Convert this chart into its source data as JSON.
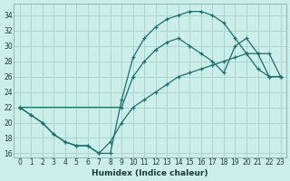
{
  "xlabel": "Humidex (Indice chaleur)",
  "ylabel": "",
  "bg_color": "#cceee8",
  "grid_color": "#aad4ce",
  "line_color": "#1a6e6e",
  "xlim": [
    -0.5,
    23.5
  ],
  "ylim": [
    15.5,
    35.5
  ],
  "xticks": [
    0,
    1,
    2,
    3,
    4,
    5,
    6,
    7,
    8,
    9,
    10,
    11,
    12,
    13,
    14,
    15,
    16,
    17,
    18,
    19,
    20,
    21,
    22,
    23
  ],
  "yticks": [
    16,
    18,
    20,
    22,
    24,
    26,
    28,
    30,
    32,
    34
  ],
  "curve1_x": [
    0,
    1,
    2,
    3,
    4,
    5,
    6,
    7,
    8,
    9,
    10,
    11,
    12,
    13,
    14,
    15,
    16,
    17,
    18,
    19,
    20,
    21,
    22,
    23
  ],
  "curve1_y": [
    22,
    21,
    20,
    18.5,
    17.5,
    17,
    17,
    16,
    16,
    23,
    28.5,
    31,
    32.5,
    33.5,
    34,
    34.5,
    34.5,
    34,
    33,
    31,
    29,
    27,
    26,
    26
  ],
  "curve2_x": [
    0,
    9,
    10,
    11,
    12,
    13,
    14,
    15,
    16,
    17,
    18,
    19,
    20,
    21,
    22,
    23
  ],
  "curve2_y": [
    22,
    22,
    26,
    28,
    29.5,
    30.5,
    31,
    30,
    29,
    28,
    26.5,
    30,
    31,
    29,
    29,
    26
  ],
  "curve3_x": [
    0,
    1,
    2,
    3,
    4,
    5,
    6,
    7,
    8,
    9,
    10,
    11,
    12,
    13,
    14,
    15,
    16,
    17,
    18,
    19,
    20,
    21,
    22,
    23
  ],
  "curve3_y": [
    22,
    21,
    20,
    18.5,
    17.5,
    17,
    17,
    16,
    17.5,
    20,
    22,
    23,
    24,
    25,
    26,
    26.5,
    27,
    27.5,
    28,
    28.5,
    29,
    29,
    26,
    26
  ]
}
